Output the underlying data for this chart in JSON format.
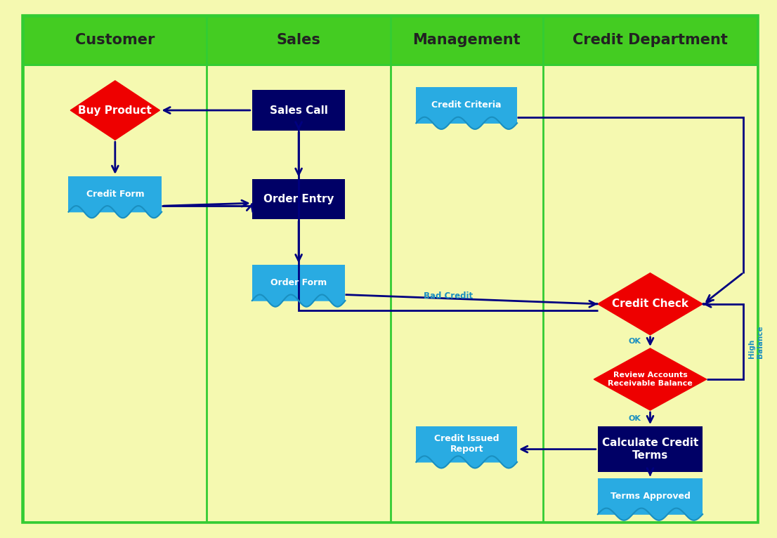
{
  "bg_color": "#f5f9b0",
  "border_color": "#33cc33",
  "header_color": "#44cc22",
  "lane_line_color": "#33cc33",
  "lanes": [
    "Customer",
    "Sales",
    "Management",
    "Credit Department"
  ],
  "arrow_color": "#000080",
  "diamond_color_red": "#ee0000",
  "box_color_dark": "#000066",
  "box_color_light": "#29abe2",
  "text_color_white": "#ffffff",
  "text_color_dark": "#222222",
  "text_color_cyan": "#1a8fc0",
  "header_fontsize": 15,
  "label_fontsize_large": 11,
  "label_fontsize_small": 9
}
